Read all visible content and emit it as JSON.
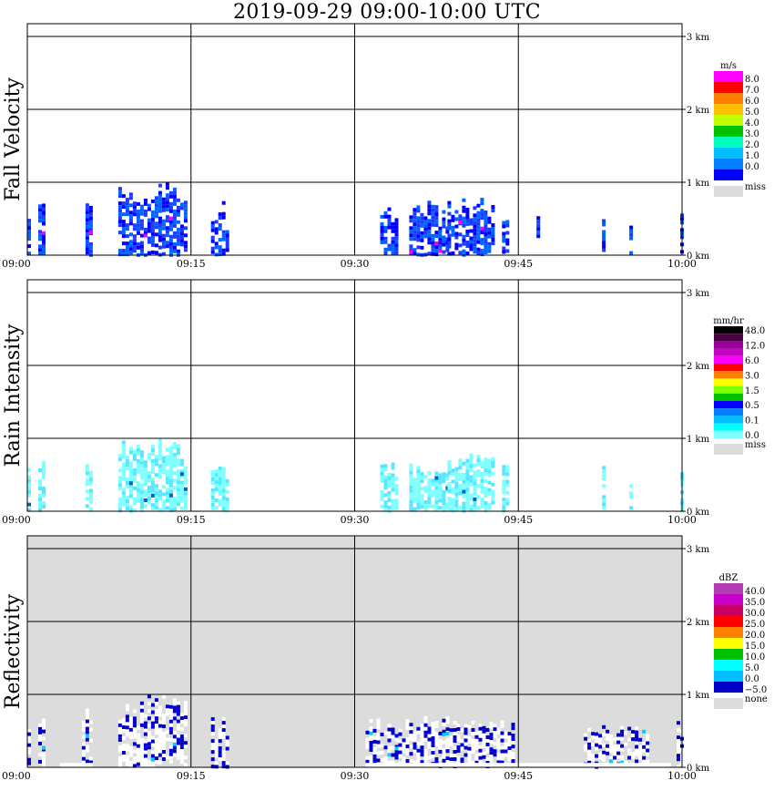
{
  "title": "2019-09-29   09:00-10:00 UTC",
  "colors": {
    "grey": "#dcdcdc",
    "grid": "#000000"
  },
  "chart_data": [
    {
      "type": "heatmap",
      "ylabel": "Fall Velocity",
      "x_ticks": [
        "09:00",
        "09:15",
        "09:30",
        "09:45",
        "10:00"
      ],
      "y_ticks": [
        "0 km",
        "1 km",
        "2 km",
        "3 km"
      ],
      "xlim": [
        "09:00",
        "10:00"
      ],
      "ylim_km": [
        0,
        3.0
      ],
      "background": "white",
      "legend": {
        "unit": "m/s",
        "entries": [
          {
            "label": "8.0",
            "color": "#ff00ff"
          },
          {
            "label": "7.0",
            "color": "#ff0000"
          },
          {
            "label": "6.0",
            "color": "#ff7f00"
          },
          {
            "label": "5.0",
            "color": "#ffbf00"
          },
          {
            "label": "4.0",
            "color": "#bfff00"
          },
          {
            "label": "3.0",
            "color": "#00c000"
          },
          {
            "label": "2.0",
            "color": "#00ffbf"
          },
          {
            "label": "1.0",
            "color": "#00bfff"
          },
          {
            "label": "0.0",
            "color": "#007fff"
          },
          {
            "label": "",
            "color": "#0000ff"
          }
        ],
        "miss_label": "miss",
        "miss_color": "#dcdcdc"
      },
      "echo_colors": [
        "#0000ff",
        "#1e3cff",
        "#0064ff"
      ],
      "accent_color": "#ff00ff",
      "echo_regions_utc": [
        {
          "start": "09:00:00",
          "end": "09:00:10",
          "top_km": 0.62
        },
        {
          "start": "09:01:00",
          "end": "09:01:30",
          "top_km": 0.72
        },
        {
          "start": "09:05:20",
          "end": "09:05:45",
          "top_km": 0.82
        },
        {
          "start": "09:08:20",
          "end": "09:14:40",
          "top_km": 1.0
        },
        {
          "start": "09:16:50",
          "end": "09:18:30",
          "top_km": 0.72
        },
        {
          "start": "09:32:20",
          "end": "09:34:00",
          "top_km": 0.7
        },
        {
          "start": "09:35:00",
          "end": "09:38:30",
          "top_km": 0.72
        },
        {
          "start": "09:38:30",
          "end": "09:42:40",
          "top_km": 0.8
        },
        {
          "start": "09:43:30",
          "end": "09:44:00",
          "top_km": 0.7
        },
        {
          "start": "09:46:40",
          "end": "09:47:00",
          "top_km": 0.8
        },
        {
          "start": "09:52:40",
          "end": "09:53:00",
          "top_km": 0.75
        },
        {
          "start": "09:55:10",
          "end": "09:55:30",
          "top_km": 0.5
        },
        {
          "start": "09:59:50",
          "end": "10:00:00",
          "top_km": 0.8
        }
      ]
    },
    {
      "type": "heatmap",
      "ylabel": "Rain Intensity",
      "x_ticks": [
        "09:00",
        "09:15",
        "09:30",
        "09:45",
        "10:00"
      ],
      "y_ticks": [
        "0 km",
        "1 km",
        "2 km",
        "3 km"
      ],
      "xlim": [
        "09:00",
        "10:00"
      ],
      "ylim_km": [
        0,
        3.0
      ],
      "background": "white",
      "legend": {
        "unit": "mm/hr",
        "entries": [
          {
            "label": "48.0",
            "color": "#000000"
          },
          {
            "label": "",
            "color": "#4b0046"
          },
          {
            "label": "12.0",
            "color": "#960096"
          },
          {
            "label": "",
            "color": "#c800c8"
          },
          {
            "label": "6.0",
            "color": "#ff00ff"
          },
          {
            "label": "",
            "color": "#ff0000"
          },
          {
            "label": "3.0",
            "color": "#ff7f00"
          },
          {
            "label": "",
            "color": "#ffff00"
          },
          {
            "label": "1.5",
            "color": "#80ff00"
          },
          {
            "label": "",
            "color": "#00c000"
          },
          {
            "label": "0.5",
            "color": "#0000ff"
          },
          {
            "label": "",
            "color": "#007fff"
          },
          {
            "label": "0.1",
            "color": "#00bfff"
          },
          {
            "label": "",
            "color": "#00ffff"
          },
          {
            "label": "0.0",
            "color": "#80ffff"
          }
        ],
        "miss_label": "miss",
        "miss_color": "#dcdcdc"
      },
      "echo_colors": [
        "#80ffff",
        "#5ae6ff",
        "#80ffff"
      ],
      "accent_color": "#0064c8",
      "echo_regions_utc": [
        {
          "start": "09:00:00",
          "end": "09:00:10",
          "top_km": 0.62
        },
        {
          "start": "09:01:00",
          "end": "09:01:30",
          "top_km": 0.72
        },
        {
          "start": "09:05:20",
          "end": "09:05:45",
          "top_km": 0.82
        },
        {
          "start": "09:08:20",
          "end": "09:14:40",
          "top_km": 1.0
        },
        {
          "start": "09:16:50",
          "end": "09:18:30",
          "top_km": 0.72
        },
        {
          "start": "09:32:20",
          "end": "09:34:00",
          "top_km": 0.7
        },
        {
          "start": "09:35:00",
          "end": "09:38:30",
          "top_km": 0.72
        },
        {
          "start": "09:38:30",
          "end": "09:42:40",
          "top_km": 0.8
        },
        {
          "start": "09:43:30",
          "end": "09:44:00",
          "top_km": 0.7
        },
        {
          "start": "09:52:40",
          "end": "09:53:00",
          "top_km": 0.75
        },
        {
          "start": "09:55:10",
          "end": "09:55:30",
          "top_km": 0.5
        },
        {
          "start": "09:59:50",
          "end": "10:00:00",
          "top_km": 0.8
        }
      ]
    },
    {
      "type": "heatmap",
      "ylabel": "Reflectivity",
      "x_ticks": [
        "09:00",
        "09:15",
        "09:30",
        "09:45",
        "10:00"
      ],
      "y_ticks": [
        "0 km",
        "1 km",
        "2 km",
        "3 km"
      ],
      "xlim": [
        "09:00",
        "10:00"
      ],
      "ylim_km": [
        0,
        3.0
      ],
      "background": "grey",
      "legend": {
        "unit": "dBZ",
        "entries": [
          {
            "label": "40.0",
            "color": "#b43cb4"
          },
          {
            "label": "35.0",
            "color": "#c800c8"
          },
          {
            "label": "30.0",
            "color": "#c80064"
          },
          {
            "label": "25.0",
            "color": "#ff0000"
          },
          {
            "label": "20.0",
            "color": "#ff7f00"
          },
          {
            "label": "15.0",
            "color": "#ffff00"
          },
          {
            "label": "10.0",
            "color": "#00c000"
          },
          {
            "label": "5.0",
            "color": "#00ffff"
          },
          {
            "label": "0.0",
            "color": "#00bfff"
          },
          {
            "label": "−5.0",
            "color": "#0000c8"
          }
        ],
        "miss_label": "none",
        "miss_color": "#dcdcdc"
      },
      "echo_colors": [
        "#ffffff",
        "#ffffff",
        "#0000c8"
      ],
      "accent_color": "#00d2ff",
      "echo_regions_utc": [
        {
          "start": "09:00:00",
          "end": "09:00:20",
          "top_km": 0.62
        },
        {
          "start": "09:01:00",
          "end": "09:01:30",
          "top_km": 0.72
        },
        {
          "start": "09:05:00",
          "end": "09:06:00",
          "top_km": 0.9
        },
        {
          "start": "09:08:20",
          "end": "09:14:40",
          "top_km": 1.0
        },
        {
          "start": "09:16:50",
          "end": "09:18:30",
          "top_km": 0.72
        },
        {
          "start": "09:31:00",
          "end": "09:44:30",
          "top_km": 0.7
        },
        {
          "start": "09:51:00",
          "end": "09:57:00",
          "top_km": 0.6
        },
        {
          "start": "09:59:30",
          "end": "10:00:00",
          "top_km": 0.8
        }
      ],
      "ground_band_km": 0.06
    }
  ]
}
